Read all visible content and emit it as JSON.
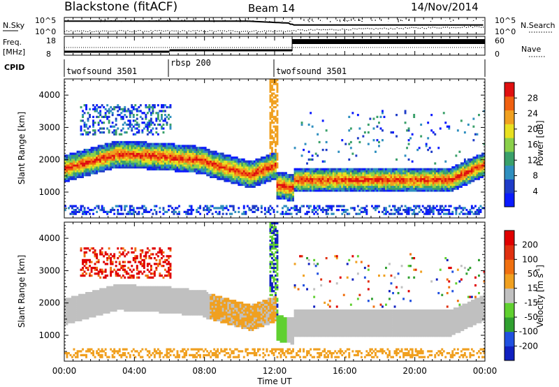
{
  "header": {
    "station": "Blackstone (fitACF)",
    "beam": "Beam 14",
    "date": "14/Nov/2014"
  },
  "strips": {
    "nsky": {
      "label": "N.Sky",
      "ticks": [
        "10^5",
        "10^0"
      ]
    },
    "nsearch": {
      "label": "N.Search",
      "ticks": [
        "10^5",
        "10^0"
      ]
    },
    "freq": {
      "label_line1": "Freq.",
      "label_line2": "[MHz]",
      "ticks": [
        "18",
        "8"
      ]
    },
    "nave": {
      "label": "Nave",
      "ticks": [
        "60",
        "0"
      ]
    },
    "cpid": {
      "label": "CPID",
      "segments": [
        {
          "name": "twofsound 3501",
          "start_hour": 0,
          "end_hour": 6
        },
        {
          "name": "rbsp 200",
          "start_hour": 6,
          "end_hour": 12
        },
        {
          "name": "twofsound 3501",
          "start_hour": 12,
          "end_hour": 24
        }
      ]
    }
  },
  "chart_data": [
    {
      "type": "heatmap",
      "quantity": "Power",
      "ylabel": "Slant Range [km]",
      "ylim": [
        200,
        4500
      ],
      "yticks": [
        "1000",
        "2000",
        "3000",
        "4000"
      ],
      "colorbar_label": "Power [dB]",
      "colorbar_ticks": [
        "28",
        "24",
        "20",
        "16",
        "12",
        "8",
        "4"
      ],
      "colorbar_range": [
        0,
        32
      ],
      "colors": [
        "#0a1aff",
        "#1e3cc8",
        "#2f8fbf",
        "#3aa06a",
        "#8ad04a",
        "#e8e020",
        "#f0a020",
        "#f06010",
        "#e01010"
      ]
    },
    {
      "type": "heatmap",
      "quantity": "Velocity",
      "ylabel": "Slant Range [km]",
      "ylim": [
        200,
        4500
      ],
      "yticks": [
        "1000",
        "2000",
        "3000",
        "4000"
      ],
      "colorbar_label_main": "Velocity",
      "colorbar_label_unit": "[m s",
      "colorbar_label_exp": "-1",
      "colorbar_label_close": "]",
      "colorbar_ticks": [
        "200",
        "100",
        "50",
        "15",
        "-15",
        "-50",
        "-100",
        "-200"
      ],
      "colors": [
        "#1020c0",
        "#2050e0",
        "#30a030",
        "#60d030",
        "#c0c0c0",
        "#f0a020",
        "#f07010",
        "#e03010",
        "#e00000"
      ]
    }
  ],
  "xaxis": {
    "xlabel": "Time UT",
    "xlim": [
      0,
      24
    ],
    "ticks": [
      "00:00",
      "04:00",
      "08:00",
      "12:00",
      "16:00",
      "20:00",
      "00:00"
    ]
  }
}
